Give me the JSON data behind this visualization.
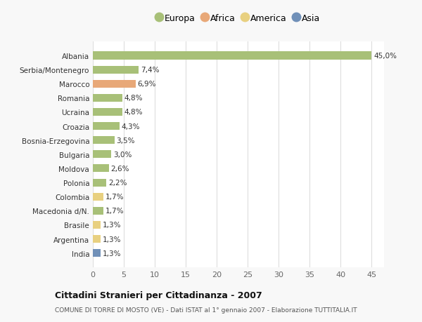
{
  "categories": [
    "Albania",
    "Serbia/Montenegro",
    "Marocco",
    "Romania",
    "Ucraina",
    "Croazia",
    "Bosnia-Erzegovina",
    "Bulgaria",
    "Moldova",
    "Polonia",
    "Colombia",
    "Macedonia d/N.",
    "Brasile",
    "Argentina",
    "India"
  ],
  "values": [
    45.0,
    7.4,
    6.9,
    4.8,
    4.8,
    4.3,
    3.5,
    3.0,
    2.6,
    2.2,
    1.7,
    1.7,
    1.3,
    1.3,
    1.3
  ],
  "labels": [
    "45,0%",
    "7,4%",
    "6,9%",
    "4,8%",
    "4,8%",
    "4,3%",
    "3,5%",
    "3,0%",
    "2,6%",
    "2,2%",
    "1,7%",
    "1,7%",
    "1,3%",
    "1,3%",
    "1,3%"
  ],
  "colors": [
    "#a8c078",
    "#a8c078",
    "#e8a878",
    "#a8c078",
    "#a8c078",
    "#a8c078",
    "#a8c078",
    "#a8c078",
    "#a8c078",
    "#a8c078",
    "#e8d080",
    "#a8c078",
    "#e8d080",
    "#e8d080",
    "#7090b8"
  ],
  "legend_labels": [
    "Europa",
    "Africa",
    "America",
    "Asia"
  ],
  "legend_colors": [
    "#a8c078",
    "#e8a878",
    "#e8d080",
    "#7090b8"
  ],
  "xlim": [
    0,
    47
  ],
  "xticks": [
    0,
    5,
    10,
    15,
    20,
    25,
    30,
    35,
    40,
    45
  ],
  "title": "Cittadini Stranieri per Cittadinanza - 2007",
  "subtitle": "COMUNE DI TORRE DI MOSTO (VE) - Dati ISTAT al 1° gennaio 2007 - Elaborazione TUTTITALIA.IT",
  "background_color": "#f8f8f8",
  "plot_bg_color": "#ffffff",
  "grid_color": "#dddddd",
  "bar_height": 0.55
}
